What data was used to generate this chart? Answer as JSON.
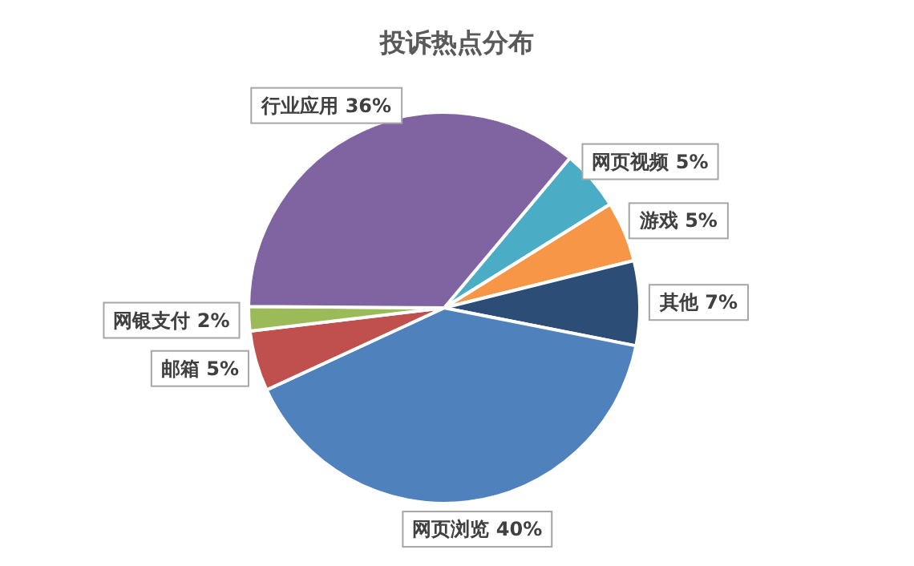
{
  "chart_data": {
    "type": "pie",
    "title": "投诉热点分布",
    "categories": [
      "网页视频",
      "游戏",
      "其他",
      "网页浏览",
      "邮箱",
      "网银支付",
      "行业应用"
    ],
    "values": [
      5,
      5,
      7,
      40,
      5,
      2,
      36
    ],
    "colors": [
      "#4bacc6",
      "#f79646",
      "#2c4d75",
      "#4f81bd",
      "#c0504d",
      "#9bbb59",
      "#8064a2"
    ],
    "value_labels": [
      "5%",
      "5%",
      "7%",
      "40%",
      "5%",
      "2%",
      "36%"
    ]
  }
}
